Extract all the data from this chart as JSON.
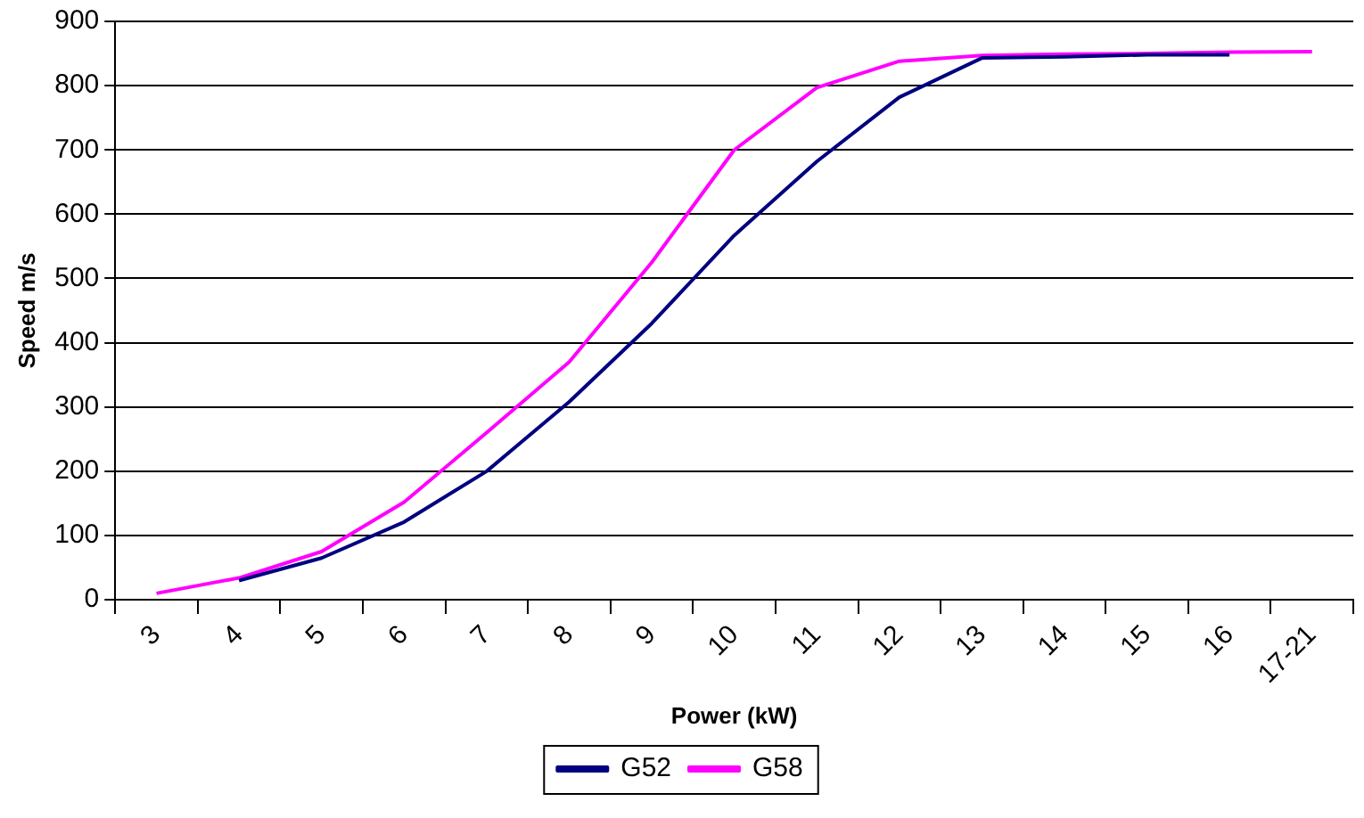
{
  "chart_data": {
    "type": "line",
    "xlabel": "Power (kW)",
    "ylabel": "Speed m/s",
    "categories": [
      "3",
      "4",
      "5",
      "6",
      "7",
      "8",
      "9",
      "10",
      "11",
      "12",
      "13",
      "14",
      "15",
      "16",
      "17-21"
    ],
    "series": [
      {
        "name": "G52",
        "color": "#000080",
        "values": [
          null,
          30,
          65,
          121,
          200,
          308,
          430,
          567,
          682,
          782,
          843,
          845,
          848,
          848,
          null
        ]
      },
      {
        "name": "G58",
        "color": "#ff00ff",
        "values": [
          10,
          34,
          75,
          152,
          260,
          370,
          525,
          700,
          797,
          838,
          847,
          849,
          850,
          852,
          853
        ]
      }
    ],
    "ylim": [
      0,
      900
    ],
    "yticks": [
      0,
      100,
      200,
      300,
      400,
      500,
      600,
      700,
      800,
      900
    ],
    "grid": "y",
    "legend": "bottom",
    "marker": "none",
    "line_style": "solid"
  }
}
